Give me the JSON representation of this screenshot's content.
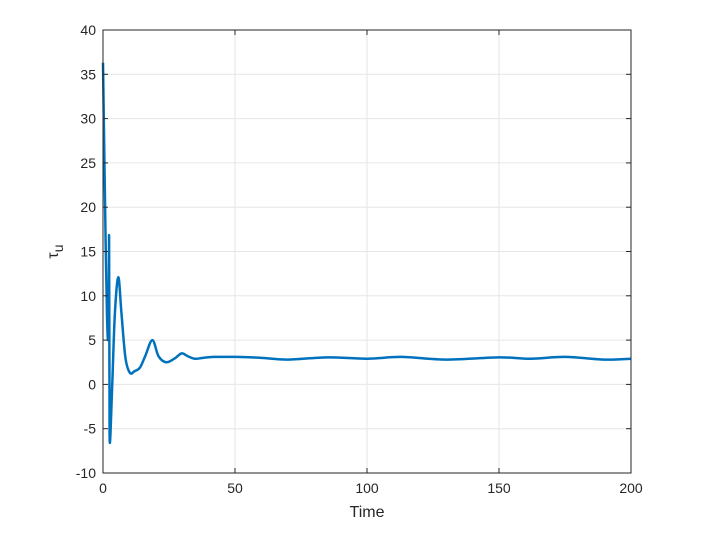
{
  "chart_data": {
    "type": "line",
    "title": "",
    "xlabel": "Time",
    "ylabel_main": "τ",
    "ylabel_sub": "u",
    "xlim": [
      0,
      200
    ],
    "ylim": [
      -10,
      40
    ],
    "xticks": [
      0,
      50,
      100,
      150,
      200
    ],
    "yticks": [
      -10,
      -5,
      0,
      5,
      10,
      15,
      20,
      25,
      30,
      35,
      40
    ],
    "grid": true,
    "line_color": "#0072BD",
    "series": [
      {
        "x": [
          0,
          0.5,
          1.0,
          1.5,
          1.9,
          2.2,
          2.3,
          2.45,
          2.6,
          3.5,
          4.5,
          5.8,
          7.0,
          8.5,
          10.2,
          12,
          14,
          16,
          18.7,
          21,
          23.9,
          27,
          29.8,
          32,
          34.8,
          38,
          42,
          50,
          60,
          70,
          85,
          100,
          113,
          130,
          150,
          162,
          175,
          190,
          200
        ],
        "y": [
          36.3,
          26,
          16,
          8,
          5.0,
          8,
          16.7,
          0,
          -6.6,
          0,
          8,
          12.1,
          8,
          3,
          1.3,
          1.5,
          1.9,
          3.2,
          5.0,
          3.2,
          2.5,
          2.9,
          3.5,
          3.2,
          2.9,
          3.0,
          3.1,
          3.1,
          3.0,
          2.8,
          3.05,
          2.9,
          3.1,
          2.8,
          3.05,
          2.9,
          3.1,
          2.8,
          2.9
        ]
      }
    ]
  }
}
